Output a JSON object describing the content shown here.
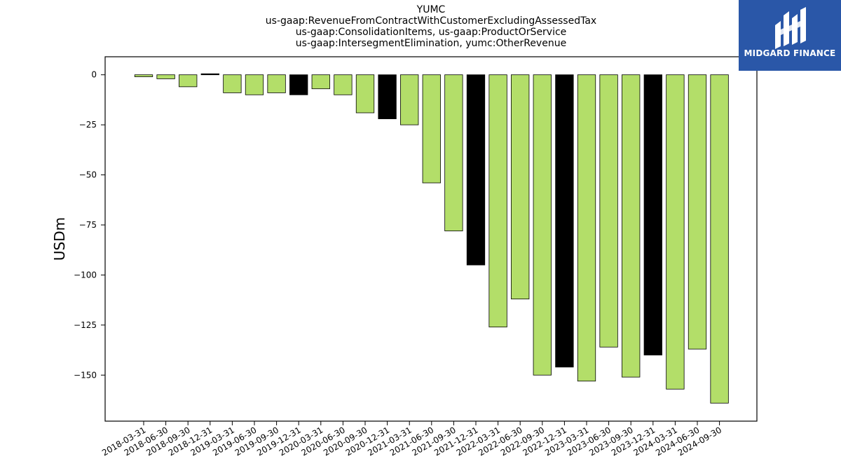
{
  "chart_data": {
    "type": "bar",
    "title_lines": [
      "YUMC",
      "us-gaap:RevenueFromContractWithCustomerExcludingAssessedTax",
      "us-gaap:ConsolidationItems, us-gaap:ProductOrService",
      "us-gaap:IntersegmentElimination, yumc:OtherRevenue"
    ],
    "ylabel": "USDm",
    "xlabel": "",
    "ylim": [
      -173,
      9
    ],
    "yticks": [
      0,
      -25,
      -50,
      -75,
      -100,
      -125,
      -150
    ],
    "grid": false,
    "legend": "none",
    "colors": {
      "quarter": "#b3de69",
      "year_end": "#000000",
      "edge": "#000000"
    },
    "categories": [
      "2018-03-31",
      "2018-06-30",
      "2018-09-30",
      "2018-12-31",
      "2019-03-31",
      "2019-06-30",
      "2019-09-30",
      "2019-12-31",
      "2020-03-31",
      "2020-06-30",
      "2020-09-30",
      "2020-12-31",
      "2021-03-31",
      "2021-06-30",
      "2021-09-30",
      "2021-12-31",
      "2022-03-31",
      "2022-06-30",
      "2022-09-30",
      "2022-12-31",
      "2023-03-31",
      "2023-06-30",
      "2023-09-30",
      "2023-12-31",
      "2024-03-31",
      "2024-06-30",
      "2024-09-30"
    ],
    "values": [
      -1,
      -2,
      -6,
      0.5,
      -9,
      -10,
      -9,
      -10,
      -7,
      -10,
      -19,
      -22,
      -25,
      -54,
      -78,
      -95,
      -126,
      -112,
      -150,
      -146,
      -153,
      -136,
      -151,
      -140,
      -157,
      -137,
      -164
    ]
  },
  "logo": {
    "text": "MIDGARD FINANCE"
  }
}
